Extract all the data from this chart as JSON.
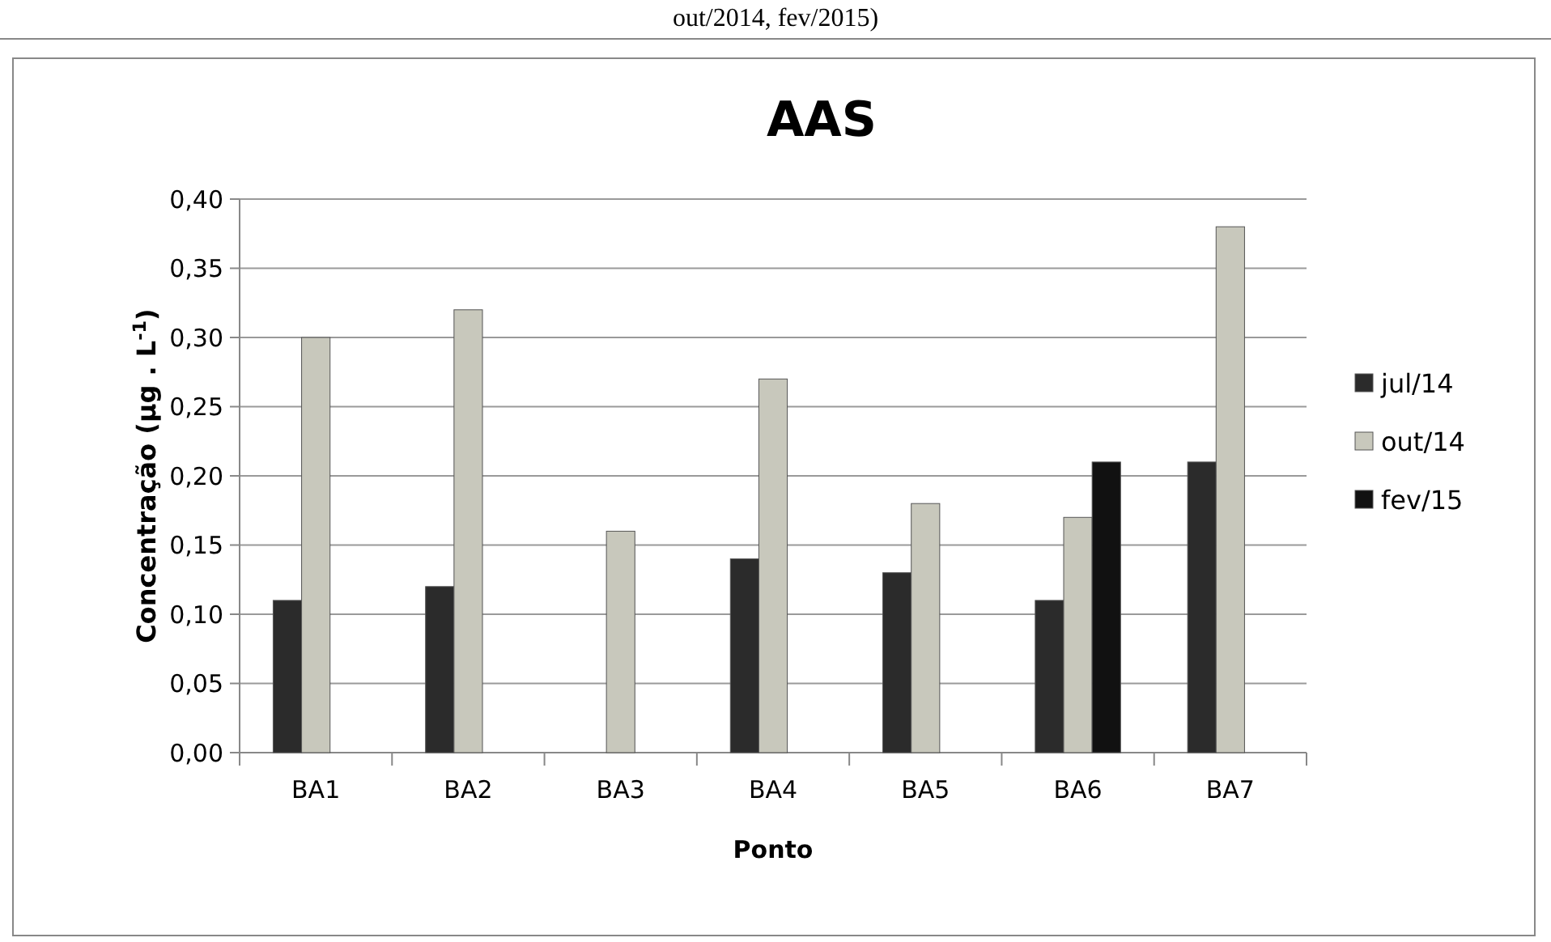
{
  "chart_data": {
    "type": "bar",
    "title": "AAS",
    "xlabel": "Ponto",
    "ylabel": "Concentração (µg . L$^{-1}$)",
    "annotations": [
      "out/2014, fev/2015)"
    ],
    "categories": [
      "BA1",
      "BA2",
      "BA3",
      "BA4",
      "BA5",
      "BA6",
      "BA7"
    ],
    "series": [
      {
        "name": "jul/14",
        "color": "#2b2b2b",
        "values": [
          0.11,
          0.12,
          null,
          0.14,
          0.13,
          0.11,
          0.21
        ]
      },
      {
        "name": "out/14",
        "color": "#c8c8bc",
        "values": [
          0.3,
          0.32,
          0.16,
          0.27,
          0.18,
          0.17,
          0.38
        ]
      },
      {
        "name": "fev/15",
        "color": "#111111",
        "values": [
          null,
          null,
          null,
          null,
          null,
          0.21,
          null
        ]
      }
    ],
    "ylim": [
      0,
      0.4
    ],
    "yticks": [
      {
        "value": 0,
        "label": "0,00"
      },
      {
        "value": 0.05,
        "label": "0,05"
      },
      {
        "value": 0.1,
        "label": "0,10"
      },
      {
        "value": 0.15,
        "label": "0,15"
      },
      {
        "value": 0.2,
        "label": "0,20"
      },
      {
        "value": 0.25,
        "label": "0,25"
      },
      {
        "value": 0.3,
        "label": "0,30"
      },
      {
        "value": 0.35,
        "label": "0,35"
      },
      {
        "value": 0.4,
        "label": "0,40"
      }
    ],
    "grid": "y",
    "legend": "right"
  }
}
